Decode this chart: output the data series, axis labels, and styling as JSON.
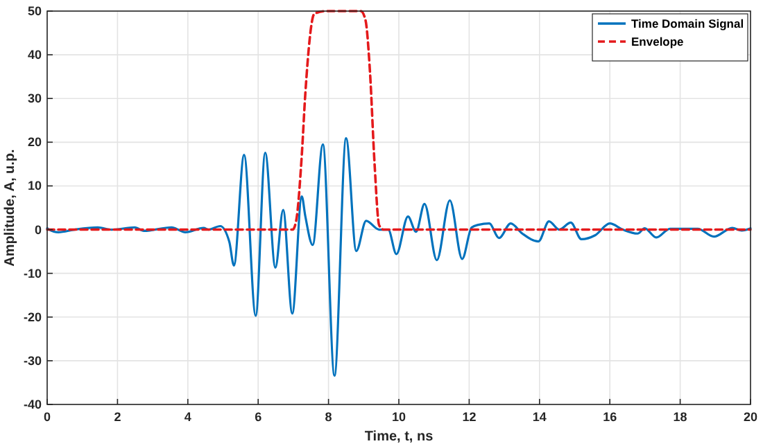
{
  "chart_data": {
    "type": "line",
    "xlabel": "Time, t, ns",
    "ylabel": "Amplitude, A, u.p.",
    "xlim": [
      0,
      20
    ],
    "ylim": [
      -40,
      50
    ],
    "xticks": [
      0,
      2,
      4,
      6,
      8,
      10,
      12,
      14,
      16,
      18,
      20
    ],
    "yticks": [
      -40,
      -30,
      -20,
      -10,
      0,
      10,
      20,
      30,
      40,
      50
    ],
    "grid": true,
    "legend": "top right",
    "marker": "none",
    "series": [
      {
        "name": "Time Domain Signal",
        "color": "#0072bd",
        "line_style": "solid",
        "x": [
          0,
          0.06,
          0.32,
          0.78,
          1.44,
          1.83,
          2.49,
          2.75,
          3.54,
          3.93,
          4.45,
          4.59,
          4.92,
          5.18,
          5.31,
          5.6,
          5.93,
          6.2,
          6.49,
          6.71,
          6.97,
          7.24,
          7.34,
          7.55,
          7.84,
          8.17,
          8.5,
          8.79,
          9.07,
          9.44,
          9.7,
          9.93,
          10.26,
          10.49,
          10.73,
          11.08,
          11.45,
          11.8,
          12.07,
          12.26,
          12.57,
          12.85,
          13.18,
          13.51,
          13.97,
          14.27,
          14.56,
          14.89,
          15.19,
          15.58,
          16,
          16.37,
          16.79,
          16.99,
          17.32,
          17.71,
          18.5,
          18.96,
          19.48,
          19.75,
          20
        ],
        "values": [
          0.3,
          0,
          -0.6,
          0,
          0.5,
          0,
          0.5,
          -0.3,
          0.5,
          -0.6,
          0.4,
          0,
          0.8,
          -2.8,
          -8.2,
          17.1,
          -19.7,
          17.6,
          -8.7,
          4.5,
          -19.2,
          7.6,
          3.1,
          -3.5,
          19.5,
          -33.4,
          20.9,
          -4.9,
          2,
          0,
          0,
          -5.6,
          3,
          -0.5,
          5.9,
          -7,
          6.7,
          -6.7,
          0.5,
          1.1,
          1.4,
          -1.9,
          1.4,
          -0.9,
          -2.7,
          1.9,
          0,
          1.6,
          -2.2,
          -1.3,
          1.4,
          0,
          -0.9,
          0.3,
          -1.8,
          0.2,
          0.2,
          -1.6,
          0.4,
          -0.2,
          0.3
        ]
      },
      {
        "name": "Envelope",
        "color": "#e41a1c",
        "line_style": "dashed",
        "x": [
          0,
          6.98,
          7.08,
          7.24,
          7.34,
          7.6,
          7.93,
          8.92,
          9.05,
          9.18,
          9.31,
          9.44,
          9.57,
          20
        ],
        "values": [
          0,
          0,
          2,
          17,
          31,
          49.4,
          50,
          50,
          48,
          36,
          15,
          1,
          0,
          0
        ]
      }
    ]
  }
}
